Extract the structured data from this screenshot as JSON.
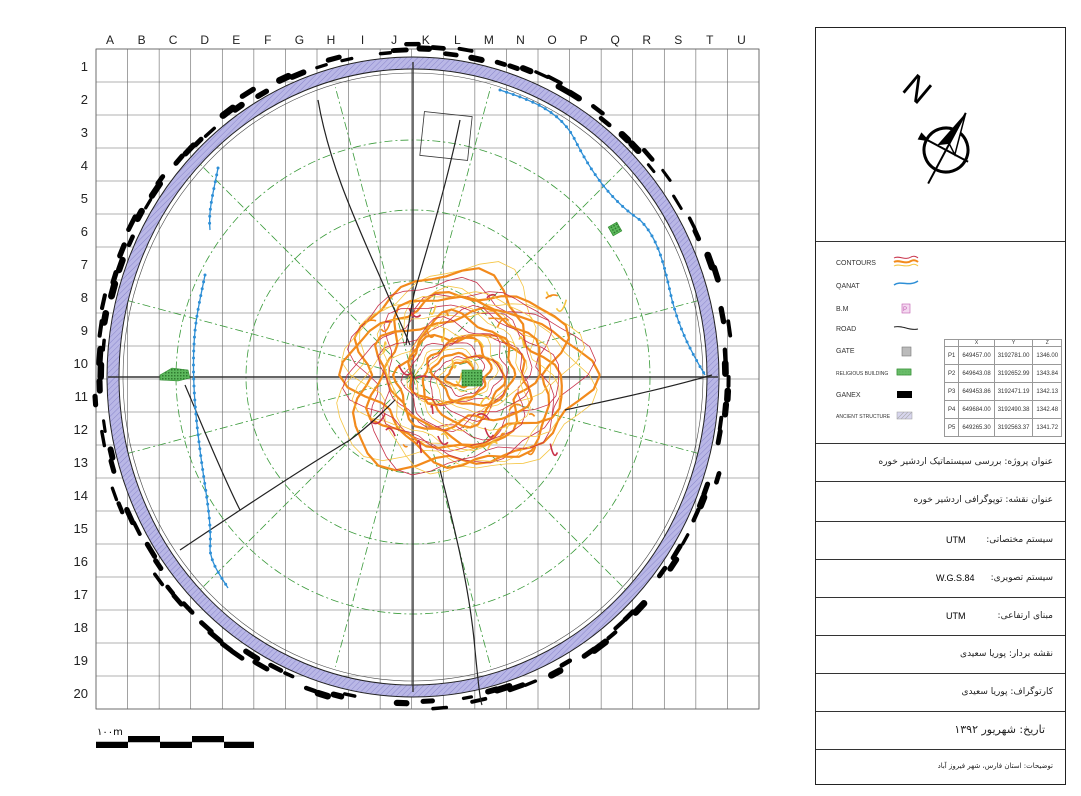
{
  "grid": {
    "columns": [
      "A",
      "B",
      "C",
      "D",
      "E",
      "F",
      "G",
      "H",
      "I",
      "J",
      "K",
      "L",
      "M",
      "N",
      "O",
      "P",
      "Q",
      "R",
      "S",
      "T",
      "U"
    ],
    "rows": [
      "1",
      "2",
      "3",
      "4",
      "5",
      "6",
      "7",
      "8",
      "9",
      "10",
      "11",
      "12",
      "13",
      "14",
      "15",
      "16",
      "17",
      "18",
      "19",
      "20"
    ]
  },
  "scale_bar": {
    "label": "۱۰۰m"
  },
  "north_arrow": {
    "label": "N"
  },
  "legend": {
    "items": [
      {
        "label": "CONTOURS",
        "icon": "contours-swatch"
      },
      {
        "label": "QANAT",
        "icon": "qanat-line"
      },
      {
        "label": "B.M",
        "icon": "benchmark-marker"
      },
      {
        "label": "ROAD",
        "icon": "road-line"
      },
      {
        "label": "GATE",
        "icon": "gate-swatch"
      },
      {
        "label": "RELIGIOUS BUILDING",
        "icon": "religious-building-swatch"
      },
      {
        "label": "GANEX",
        "icon": "ganex-swatch"
      },
      {
        "label": "ANCIENT STRUCTURE",
        "icon": "ancient-structure-swatch"
      }
    ],
    "benchmarks": {
      "headers": [
        "X",
        "Y",
        "Z"
      ],
      "rows": [
        {
          "id": "P1",
          "x": "649457.00",
          "y": "3192781.00",
          "z": "1346.00"
        },
        {
          "id": "P2",
          "x": "649643.08",
          "y": "3192652.99",
          "z": "1343.84"
        },
        {
          "id": "P3",
          "x": "649453.86",
          "y": "3192471.19",
          "z": "1342.13"
        },
        {
          "id": "P4",
          "x": "649684.00",
          "y": "3192490.38",
          "z": "1342.48"
        },
        {
          "id": "P5",
          "x": "649265.30",
          "y": "3192563.37",
          "z": "1341.72"
        }
      ]
    }
  },
  "info": {
    "project_title": "عنوان پروژه: بررسی سیستماتیک اردشیر خوره",
    "map_title": "عنوان نقشه: توپوگرافی اردشیر خوره",
    "coordinate_system_label": "سیستم مختصاتی:",
    "coordinate_system_value": "UTM",
    "projection_label": "سیستم تصویری:",
    "projection_value": "W.G.S.84",
    "elevation_datum_label": "مبنای ارتفاعی:",
    "elevation_datum_value": "UTM",
    "surveyor": "نقشه بردار: پوریا سعیدی",
    "cartographer": "کارتوگراف: پوریا سعیدی",
    "date": "تاریخ: شهریور ۱۳۹۲",
    "notes": "توضیحات: استان فارس، شهر فیروز آباد"
  },
  "colors": {
    "wall_fill": "#b9b7e6",
    "ganex": "#000000",
    "qanat": "#2e8fd6",
    "road": "#222222",
    "contour_orange": "#f28a1c",
    "contour_yellow": "#f5c542",
    "contour_red": "#c8324a",
    "religious": "#2f8a2f",
    "radial_lines": "#3a9a3a",
    "grid": "#555555"
  }
}
